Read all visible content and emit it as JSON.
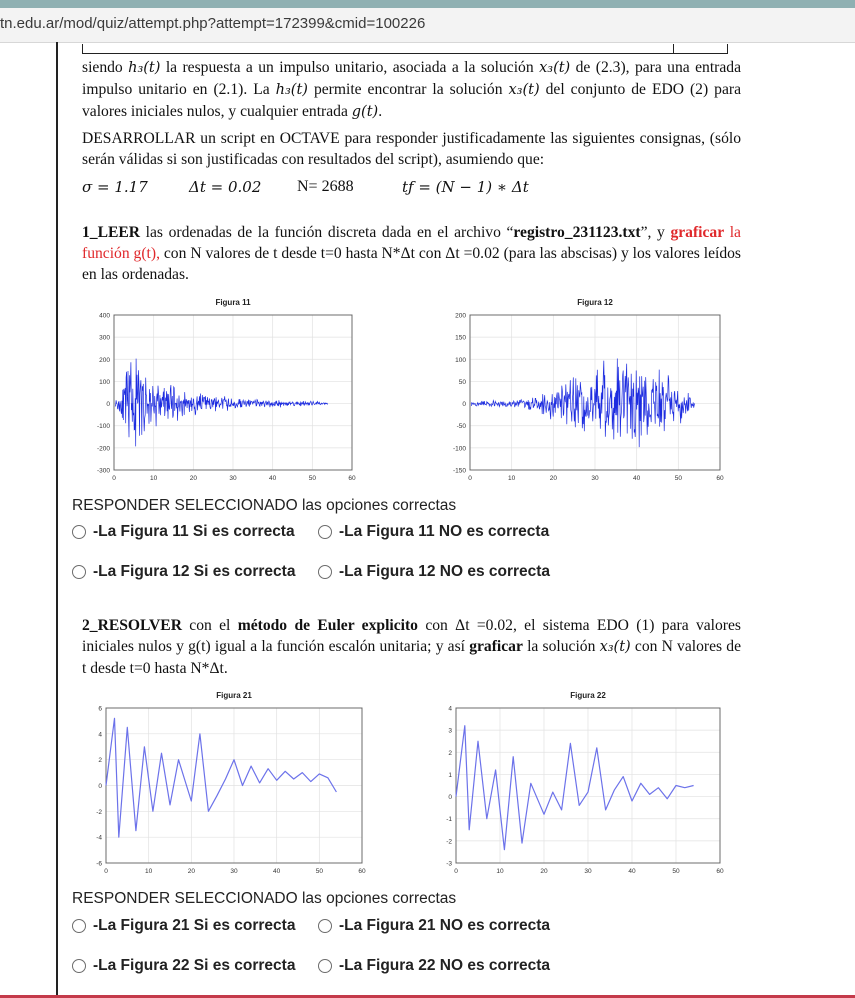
{
  "browser": {
    "url": "tn.edu.ar/mod/quiz/attempt.php?attempt=172399&cmid=100226"
  },
  "text": {
    "p1": [
      {
        "t": "siendo "
      },
      {
        "m": "h₃(t)"
      },
      {
        "t": " la respuesta a un impulso unitario, asociada a la solución "
      },
      {
        "m": "x₃(t)"
      },
      {
        "t": " de (2.3), para una entrada impulso unitario en (2.1). La "
      },
      {
        "m": "h₃(t)"
      },
      {
        "t": " permite encontrar la solución "
      },
      {
        "m": "x₃(t)"
      },
      {
        "t": " del conjunto de EDO (2) para valores iniciales nulos, y cualquier entrada "
      },
      {
        "m": "g(t)"
      },
      {
        "t": "."
      }
    ],
    "p2": "DESARROLLAR un script en OCTAVE para responder justificadamente las siguientes consignas, (sólo serán válidas si son justificadas con resultados del script), asumiendo que:",
    "params": {
      "sigma": "σ = 1.17",
      "dt": "Δt = 0.02",
      "n": "N= 2688",
      "tf": "tƒ = (N − 1) ∗ Δt"
    },
    "q1": [
      {
        "b": "1_LEER"
      },
      {
        "t": " las ordenadas de la función discreta dada en el archivo “"
      },
      {
        "b": "registro_231123.txt"
      },
      {
        "t": "”, y "
      },
      {
        "br": "graficar"
      },
      {
        "r": " la función g(t),"
      },
      {
        "t": " con N valores de t desde t=0 hasta N*Δt con Δt =0.02 (para las abscisas) y los valores leídos en las ordenadas."
      }
    ],
    "q2": [
      {
        "b": "2_RESOLVER"
      },
      {
        "t": " con el "
      },
      {
        "b": "método de Euler explicito"
      },
      {
        "t": " con Δt =0.02, el sistema EDO (1) para valores iniciales nulos y g(t) igual a la función escalón unitaria; y así "
      },
      {
        "b": "graficar"
      },
      {
        "t": " la solución "
      },
      {
        "m": "x₃(t)"
      },
      {
        "t": " con N valores de t desde t=0 hasta N*Δt."
      }
    ]
  },
  "figures": {
    "f11": {
      "title": "Figura 11",
      "xticks": [
        "0",
        "10",
        "20",
        "30",
        "40",
        "50",
        "60"
      ],
      "yticks": [
        "400",
        "300",
        "200",
        "100",
        "0",
        "-100",
        "-200",
        "-300"
      ]
    },
    "f12": {
      "title": "Figura 12",
      "xticks": [
        "0",
        "10",
        "20",
        "30",
        "40",
        "50",
        "60"
      ],
      "yticks": [
        "200",
        "150",
        "100",
        "50",
        "0",
        "-50",
        "-100",
        "-150"
      ]
    },
    "f21": {
      "title": "Figura 21",
      "xticks": [
        "0",
        "10",
        "20",
        "30",
        "40",
        "50",
        "60"
      ],
      "yticks": [
        "6",
        "4",
        "2",
        "0",
        "-2",
        "-4",
        "-6"
      ]
    },
    "f22": {
      "title": "Figura 22",
      "xticks": [
        "0",
        "10",
        "20",
        "30",
        "40",
        "50",
        "60"
      ],
      "yticks": [
        "4",
        "3",
        "2",
        "1",
        "0",
        "-1",
        "-2",
        "-3"
      ]
    }
  },
  "chart_data": [
    {
      "type": "line",
      "title": "Figura 11",
      "xlim": [
        0,
        60
      ],
      "ylim": [
        -300,
        400
      ],
      "x": [
        0,
        5,
        10,
        15,
        20,
        25,
        30,
        35,
        40,
        45,
        50,
        54
      ],
      "values": [
        0,
        250,
        120,
        90,
        60,
        40,
        30,
        20,
        15,
        10,
        5,
        0
      ],
      "series": [
        {
          "values": [
            0,
            250,
            120,
            90,
            60,
            40,
            30,
            20,
            15,
            10,
            5,
            0
          ]
        }
      ]
    },
    {
      "type": "line",
      "title": "Figura 12",
      "xlim": [
        0,
        60
      ],
      "ylim": [
        -150,
        200
      ],
      "x": [
        0,
        5,
        10,
        15,
        20,
        25,
        30,
        35,
        40,
        45,
        50,
        54
      ],
      "values": [
        0,
        2,
        5,
        15,
        40,
        70,
        90,
        120,
        100,
        80,
        60,
        0
      ],
      "series": [
        {
          "values": [
            0,
            2,
            5,
            15,
            40,
            70,
            90,
            120,
            100,
            80,
            60,
            0
          ]
        }
      ]
    },
    {
      "type": "line",
      "title": "Figura 21",
      "xlim": [
        0,
        60
      ],
      "ylim": [
        -6,
        6
      ],
      "x": [
        0,
        2,
        3,
        5,
        7,
        9,
        11,
        13,
        15,
        17,
        20,
        22,
        24,
        26,
        28,
        30,
        32,
        34,
        36,
        38,
        40,
        42,
        44,
        46,
        48,
        50,
        52,
        54
      ],
      "values": [
        0,
        5.2,
        -4,
        4.5,
        -3.5,
        3,
        -2,
        2.5,
        -1.5,
        2,
        -1.2,
        4,
        -2,
        -0.8,
        0.5,
        2,
        0,
        1.5,
        0.2,
        1.3,
        0.4,
        1.1,
        0.5,
        1.0,
        0.3,
        0.9,
        0.6,
        -0.5
      ]
    },
    {
      "type": "line",
      "title": "Figura 22",
      "xlim": [
        0,
        60
      ],
      "ylim": [
        -3,
        4
      ],
      "x": [
        0,
        2,
        3,
        5,
        7,
        9,
        11,
        13,
        15,
        17,
        20,
        22,
        24,
        26,
        28,
        30,
        32,
        34,
        36,
        38,
        40,
        42,
        44,
        46,
        48,
        50,
        52,
        54
      ],
      "values": [
        0,
        3.2,
        -1.5,
        2.5,
        -1,
        1.2,
        -2.4,
        1.8,
        -2.1,
        0.6,
        -0.8,
        0.2,
        -0.6,
        2.4,
        -0.4,
        0.2,
        2.2,
        -0.6,
        0.3,
        0.9,
        -0.2,
        0.6,
        0.1,
        0.4,
        -0.1,
        0.5,
        0.4,
        0.5
      ]
    }
  ],
  "q1": {
    "header": "RESPONDER SELECCIONADO las opciones correctas",
    "opts": [
      "-La Figura 11 Si es correcta",
      "-La Figura 11 NO es correcta",
      "-La Figura 12 Si es correcta",
      "-La Figura 12 NO es correcta"
    ]
  },
  "q2": {
    "header": "RESPONDER SELECCIONADO las opciones correctas",
    "opts": [
      "-La Figura 21 Si es correcta",
      "-La Figura 21 NO es correcta",
      "-La Figura 22 Si es correcta",
      "-La Figura 22 NO es correcta"
    ]
  },
  "colors": {
    "plotLine": "#1d2ce0",
    "plotLineLight": "#6c72ea",
    "accentRed": "#e0282b"
  }
}
